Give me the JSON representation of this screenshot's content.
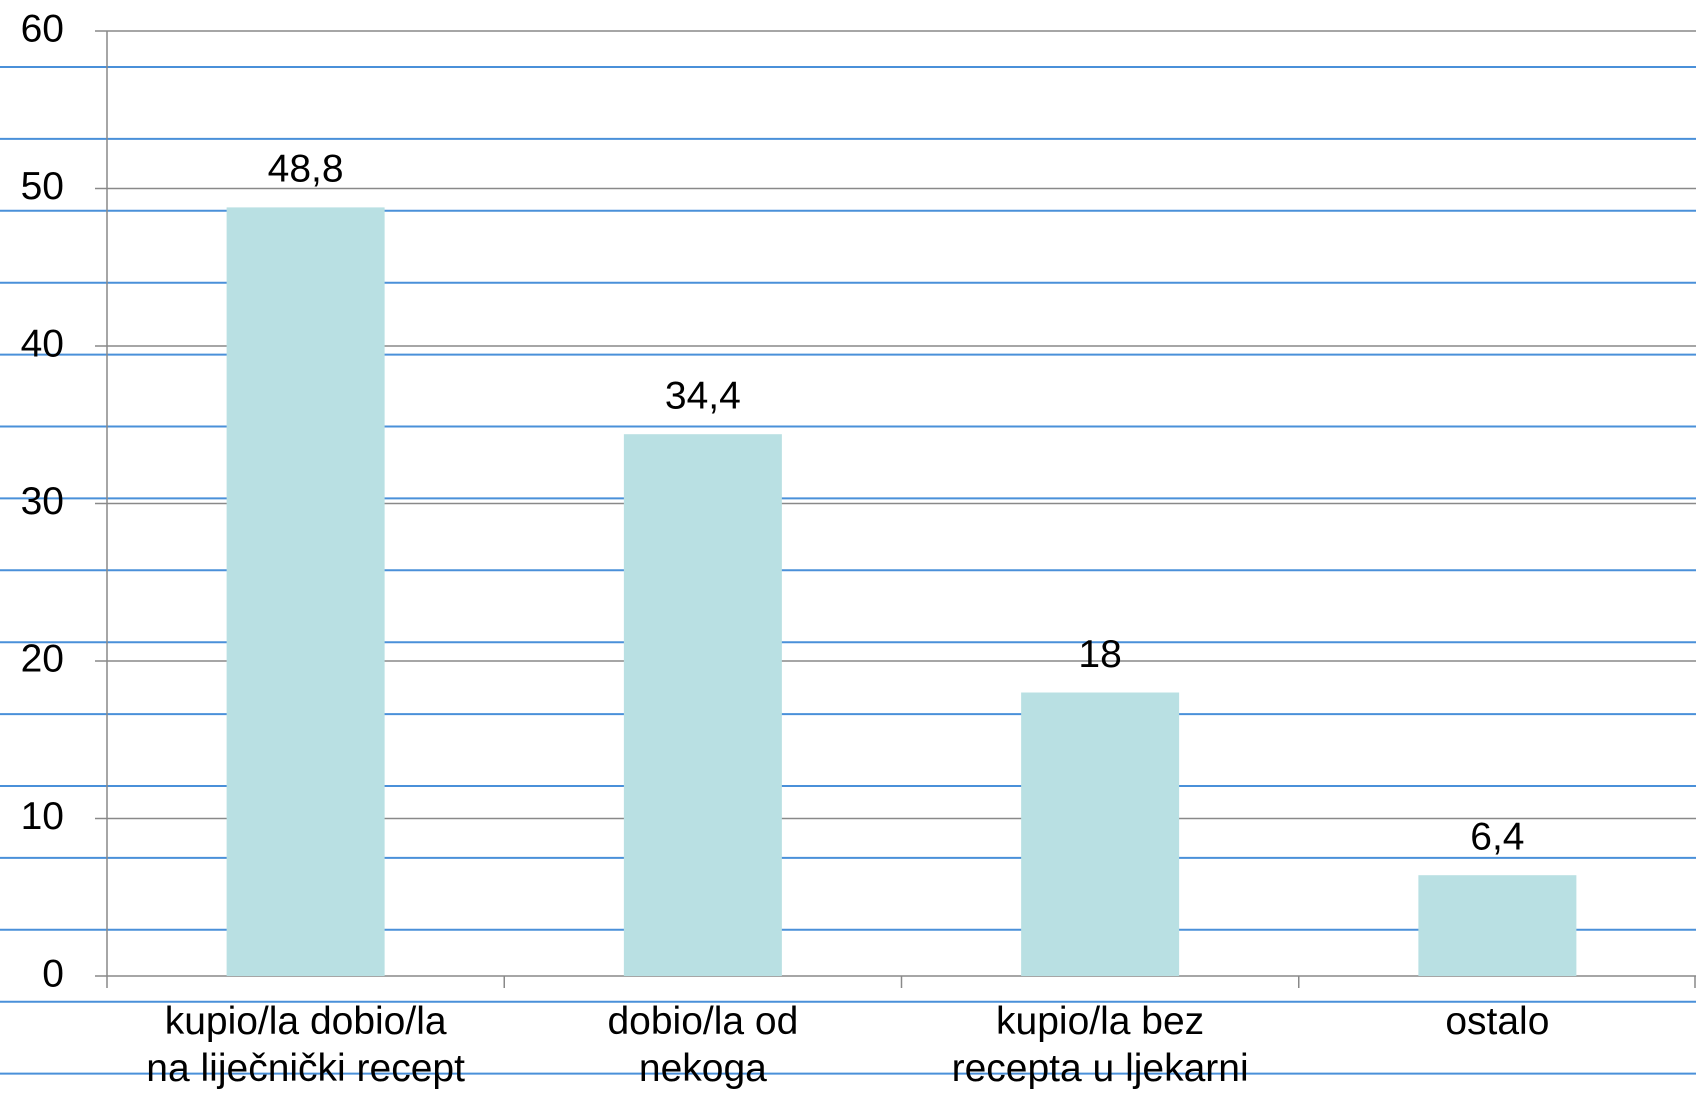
{
  "chart_data": {
    "type": "bar",
    "categories": [
      "kupio/la dobio/la\nna liječnički recept",
      "dobio/la od\nnekoga",
      "kupio/la bez\nrecepta u ljekarni",
      "ostalo"
    ],
    "values": [
      48.8,
      34.4,
      18,
      6.4
    ],
    "value_labels": [
      "48,8",
      "34,4",
      "18",
      "6,4"
    ],
    "color": "#b9e0e3",
    "ylim": [
      0,
      60
    ],
    "yticks": [
      0,
      10,
      20,
      30,
      40,
      50,
      60
    ],
    "grid": true
  }
}
